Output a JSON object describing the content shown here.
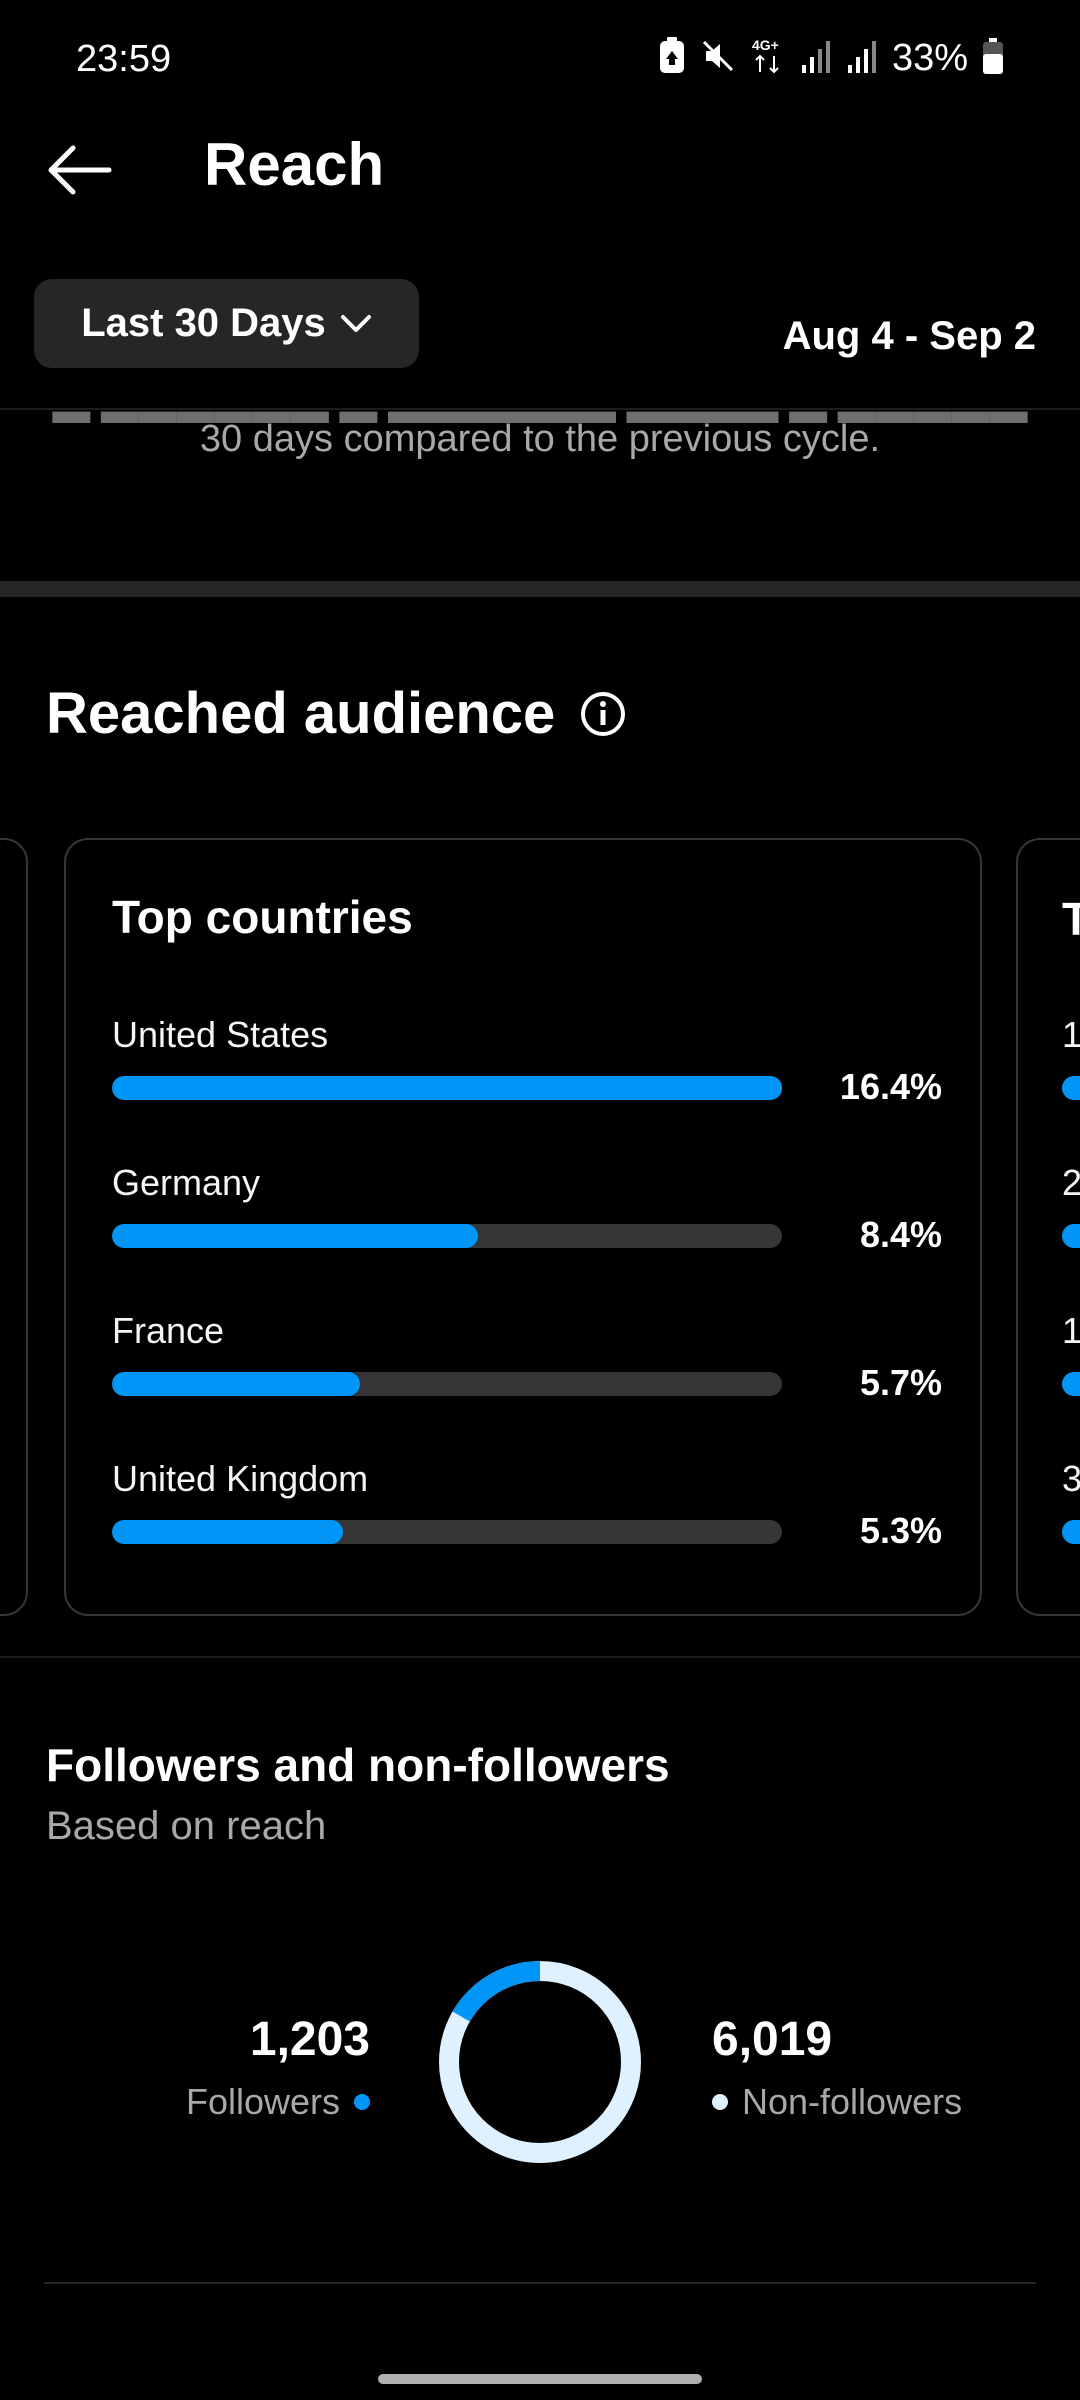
{
  "status_bar": {
    "time": "23:59",
    "battery_percent": "33%",
    "network": "4G+"
  },
  "header": {
    "title": "Reach",
    "back_icon": "arrow-left-icon"
  },
  "filter": {
    "range_label": "Last 30 Days",
    "date_range": "Aug 4 - Sep 2"
  },
  "summary": {
    "description": "30 days compared to the previous cycle."
  },
  "reached_audience": {
    "title": "Reached audience",
    "info_icon": "info-icon",
    "top_countries": {
      "title": "Top countries",
      "items": [
        {
          "name": "United States",
          "percent_label": "16.4%",
          "value": 16.4
        },
        {
          "name": "Germany",
          "percent_label": "8.4%",
          "value": 8.4
        },
        {
          "name": "France",
          "percent_label": "5.7%",
          "value": 5.7
        },
        {
          "name": "United Kingdom",
          "percent_label": "5.3%",
          "value": 5.3
        }
      ]
    },
    "next_card_peek": {
      "title_char": "T",
      "row_chars": [
        "1",
        "2",
        "1",
        "3"
      ]
    }
  },
  "followers_section": {
    "title": "Followers and non-followers",
    "subtitle": "Based on reach",
    "followers": {
      "count": "1,203",
      "label": "Followers",
      "value": 1203
    },
    "non_followers": {
      "count": "6,019",
      "label": "Non-followers",
      "value": 6019
    },
    "colors": {
      "followers": "#0095f6",
      "non_followers": "#dff1ff"
    }
  },
  "colors": {
    "accent": "#0095f6",
    "background": "#000000",
    "card_border": "#363636"
  }
}
